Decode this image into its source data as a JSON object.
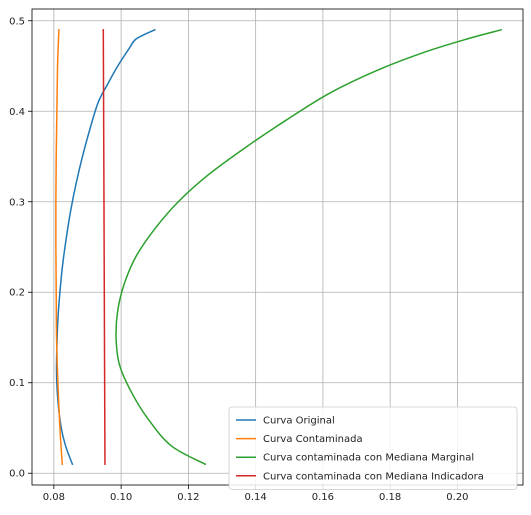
{
  "chart_data": {
    "type": "line",
    "title": "",
    "xlabel": "",
    "ylabel": "",
    "xlim": [
      0.0735,
      0.2195
    ],
    "ylim": [
      -0.013,
      0.513
    ],
    "xticks": [
      0.08,
      0.1,
      0.12,
      0.14,
      0.16,
      0.18,
      0.2
    ],
    "xtick_labels": [
      "0.08",
      "0.10",
      "0.12",
      "0.14",
      "0.16",
      "0.18",
      "0.20"
    ],
    "yticks": [
      0.0,
      0.1,
      0.2,
      0.3,
      0.4,
      0.5
    ],
    "ytick_labels": [
      "0.0",
      "0.1",
      "0.2",
      "0.3",
      "0.4",
      "0.5"
    ],
    "grid": true,
    "legend_position": "lower-right",
    "series": [
      {
        "name": "Curva Original",
        "color": "#1f77b4",
        "points": [
          [
            0.0855,
            0.01
          ],
          [
            0.0835,
            0.03
          ],
          [
            0.0822,
            0.05
          ],
          [
            0.0812,
            0.08
          ],
          [
            0.0808,
            0.11
          ],
          [
            0.0809,
            0.14
          ],
          [
            0.0812,
            0.17
          ],
          [
            0.0818,
            0.2
          ],
          [
            0.0826,
            0.23
          ],
          [
            0.0837,
            0.26
          ],
          [
            0.085,
            0.29
          ],
          [
            0.0866,
            0.32
          ],
          [
            0.0885,
            0.35
          ],
          [
            0.0907,
            0.38
          ],
          [
            0.0932,
            0.41
          ],
          [
            0.096,
            0.43
          ],
          [
            0.099,
            0.45
          ],
          [
            0.1025,
            0.47
          ],
          [
            0.1045,
            0.48
          ],
          [
            0.11,
            0.49
          ]
        ]
      },
      {
        "name": "Curva Contaminada",
        "color": "#ff7f0e",
        "points": [
          [
            0.0825,
            0.01
          ],
          [
            0.0818,
            0.05
          ],
          [
            0.0812,
            0.1
          ],
          [
            0.0808,
            0.15
          ],
          [
            0.0807,
            0.2
          ],
          [
            0.0806,
            0.25
          ],
          [
            0.0806,
            0.3
          ],
          [
            0.0807,
            0.35
          ],
          [
            0.0809,
            0.4
          ],
          [
            0.0811,
            0.45
          ],
          [
            0.0815,
            0.49
          ]
        ]
      },
      {
        "name": "Curva contaminada con Mediana Marginal",
        "color": "#2ca02c",
        "points": [
          [
            0.125,
            0.01
          ],
          [
            0.115,
            0.03
          ],
          [
            0.108,
            0.06
          ],
          [
            0.103,
            0.09
          ],
          [
            0.0995,
            0.12
          ],
          [
            0.0985,
            0.15
          ],
          [
            0.099,
            0.18
          ],
          [
            0.101,
            0.21
          ],
          [
            0.1045,
            0.24
          ],
          [
            0.11,
            0.27
          ],
          [
            0.117,
            0.3
          ],
          [
            0.126,
            0.33
          ],
          [
            0.137,
            0.36
          ],
          [
            0.149,
            0.39
          ],
          [
            0.162,
            0.42
          ],
          [
            0.176,
            0.445
          ],
          [
            0.19,
            0.465
          ],
          [
            0.203,
            0.48
          ],
          [
            0.213,
            0.49
          ]
        ]
      },
      {
        "name": "Curva contaminada con Mediana Indicadora",
        "color": "#d62728",
        "points": [
          [
            0.0952,
            0.01
          ],
          [
            0.0951,
            0.1
          ],
          [
            0.095,
            0.2
          ],
          [
            0.0949,
            0.3
          ],
          [
            0.0948,
            0.4
          ],
          [
            0.0947,
            0.49
          ]
        ]
      }
    ]
  }
}
